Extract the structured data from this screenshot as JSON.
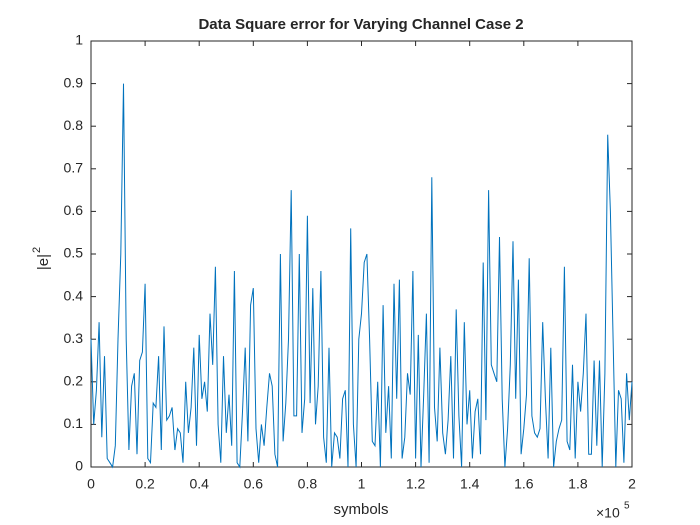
{
  "chart_data": {
    "type": "line",
    "title": "Data Square error for Varying Channel Case 2",
    "xlabel": "symbols",
    "ylabel": "|e|",
    "ylabel_superscript": "2",
    "x_multiplier": "×10",
    "x_multiplier_exponent": "5",
    "x": [
      0,
      0.01,
      0.02,
      0.03,
      0.04,
      0.05,
      0.06,
      0.07,
      0.08,
      0.09,
      0.1,
      0.11,
      0.12,
      0.13,
      0.14,
      0.15,
      0.16,
      0.17,
      0.18,
      0.19,
      0.2,
      0.21,
      0.22,
      0.23,
      0.24,
      0.25,
      0.26,
      0.27,
      0.28,
      0.29,
      0.3,
      0.31,
      0.32,
      0.33,
      0.34,
      0.35,
      0.36,
      0.37,
      0.38,
      0.39,
      0.4,
      0.41,
      0.42,
      0.43,
      0.44,
      0.45,
      0.46,
      0.47,
      0.48,
      0.49,
      0.5,
      0.51,
      0.52,
      0.53,
      0.54,
      0.55,
      0.56,
      0.57,
      0.58,
      0.59,
      0.6,
      0.61,
      0.62,
      0.63,
      0.64,
      0.65,
      0.66,
      0.67,
      0.68,
      0.69,
      0.7,
      0.71,
      0.72,
      0.73,
      0.74,
      0.75,
      0.76,
      0.77,
      0.78,
      0.79,
      0.8,
      0.81,
      0.82,
      0.83,
      0.84,
      0.85,
      0.86,
      0.87,
      0.88,
      0.89,
      0.9,
      0.91,
      0.92,
      0.93,
      0.94,
      0.95,
      0.96,
      0.97,
      0.98,
      0.99,
      1,
      1.01,
      1.02,
      1.03,
      1.04,
      1.05,
      1.06,
      1.07,
      1.08,
      1.09,
      1.1,
      1.11,
      1.12,
      1.13,
      1.14,
      1.15,
      1.16,
      1.17,
      1.18,
      1.19,
      1.2,
      1.21,
      1.22,
      1.23,
      1.24,
      1.25,
      1.26,
      1.27,
      1.28,
      1.29,
      1.3,
      1.31,
      1.32,
      1.33,
      1.34,
      1.35,
      1.36,
      1.37,
      1.38,
      1.39,
      1.4,
      1.41,
      1.42,
      1.43,
      1.44,
      1.45,
      1.46,
      1.47,
      1.48,
      1.49,
      1.5,
      1.51,
      1.52,
      1.53,
      1.54,
      1.55,
      1.56,
      1.57,
      1.58,
      1.59,
      1.6,
      1.61,
      1.62,
      1.63,
      1.64,
      1.65,
      1.66,
      1.67,
      1.68,
      1.69,
      1.7,
      1.71,
      1.72,
      1.73,
      1.74,
      1.75,
      1.76,
      1.77,
      1.78,
      1.79,
      1.8,
      1.81,
      1.82,
      1.83,
      1.84,
      1.85,
      1.86,
      1.87,
      1.88,
      1.89,
      1.9,
      1.91,
      1.92,
      1.93,
      1.94,
      1.95,
      1.96,
      1.97,
      1.98,
      1.99,
      2
    ],
    "series": [
      {
        "name": "|e|^2",
        "color": "#0072bd",
        "values": [
          0.3,
          0.1,
          0.18,
          0.34,
          0.07,
          0.26,
          0.02,
          0.01,
          0,
          0.05,
          0.3,
          0.5,
          0.9,
          0.3,
          0.04,
          0.19,
          0.22,
          0.03,
          0.25,
          0.27,
          0.43,
          0.02,
          0.01,
          0.15,
          0.14,
          0.26,
          0.04,
          0.33,
          0.11,
          0.12,
          0.14,
          0.04,
          0.09,
          0.08,
          0.01,
          0.2,
          0.08,
          0.14,
          0.28,
          0.05,
          0.31,
          0.16,
          0.2,
          0.13,
          0.36,
          0.24,
          0.47,
          0.1,
          0.01,
          0.26,
          0.08,
          0.17,
          0.05,
          0.46,
          0.01,
          0,
          0.13,
          0.28,
          0.06,
          0.38,
          0.42,
          0.09,
          0.01,
          0.1,
          0.05,
          0.14,
          0.22,
          0.19,
          0.03,
          0,
          0.5,
          0.06,
          0.15,
          0.3,
          0.65,
          0.12,
          0.12,
          0.5,
          0.08,
          0.16,
          0.59,
          0.15,
          0.42,
          0.1,
          0.19,
          0.46,
          0.07,
          0.01,
          0.28,
          0,
          0.08,
          0.07,
          0.02,
          0.16,
          0.18,
          0,
          0.56,
          0.1,
          0,
          0.3,
          0.36,
          0.48,
          0.5,
          0.3,
          0.06,
          0.05,
          0.2,
          0,
          0.38,
          0.08,
          0.19,
          0.02,
          0.43,
          0.16,
          0.44,
          0.02,
          0.07,
          0.22,
          0.17,
          0.46,
          0.02,
          0.31,
          0,
          0.17,
          0.36,
          0.01,
          0.68,
          0.14,
          0.06,
          0.28,
          0.08,
          0.03,
          0.11,
          0.26,
          0.02,
          0.37,
          0.12,
          0,
          0.34,
          0.1,
          0.18,
          0.02,
          0.13,
          0.16,
          0.03,
          0.48,
          0.11,
          0.65,
          0.24,
          0.22,
          0.2,
          0.54,
          0.16,
          0,
          0.09,
          0.24,
          0.53,
          0.16,
          0.44,
          0.03,
          0.09,
          0.17,
          0.49,
          0.12,
          0.08,
          0.07,
          0.09,
          0.34,
          0.16,
          0.02,
          0.28,
          0,
          0.06,
          0.09,
          0.11,
          0.47,
          0.06,
          0.04,
          0.24,
          0.02,
          0.2,
          0.13,
          0.22,
          0.36,
          0.03,
          0.03,
          0.25,
          0.05,
          0.25,
          0,
          0.22,
          0.78,
          0.6,
          0.3,
          0,
          0.18,
          0.16,
          0.01,
          0.22,
          0.11,
          0.2
        ]
      }
    ],
    "xlim": [
      0,
      2
    ],
    "xticks": [
      0,
      0.2,
      0.4,
      0.6,
      0.8,
      1,
      1.2,
      1.4,
      1.6,
      1.8,
      2
    ],
    "ylim": [
      0,
      1
    ],
    "yticks": [
      0,
      0.1,
      0.2,
      0.3,
      0.4,
      0.5,
      0.6,
      0.7,
      0.8,
      0.9,
      1
    ],
    "grid": false
  }
}
